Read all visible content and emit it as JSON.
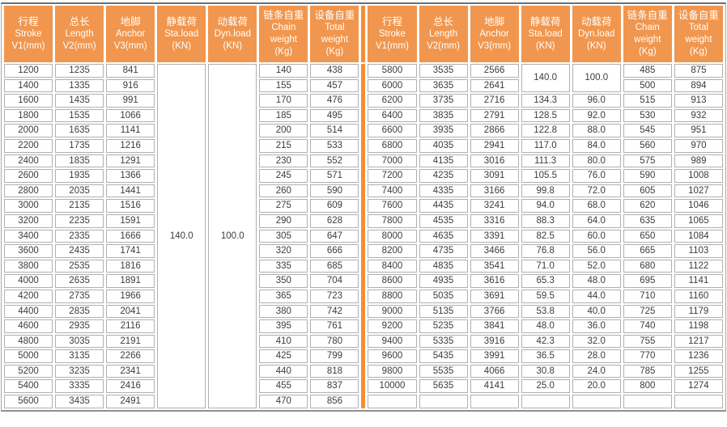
{
  "colors": {
    "header_bg": "#f0964e",
    "divider_bar": "#f18f38",
    "cell_border": "#b0b0b0",
    "data_text": "#3c3c3c",
    "header_text": "#ffffff"
  },
  "columns": [
    [
      "行程",
      "Stroke",
      "V1(mm)"
    ],
    [
      "总长",
      "Length",
      "V2(mm)"
    ],
    [
      "地脚",
      "Anchor",
      "V3(mm)"
    ],
    [
      "静载荷",
      "Sta.load",
      "(KN)"
    ],
    [
      "动载荷",
      "Dyn.load",
      "(KN)"
    ],
    [
      "链条自重",
      "Chain",
      "weight",
      "(Kg)"
    ],
    [
      "设备自重",
      "Total",
      "weight",
      "(Kg)"
    ]
  ],
  "tables": {
    "left": {
      "rows": [
        [
          "1200",
          "1235",
          "841",
          {
            "v": "140.0",
            "rs": 23
          },
          {
            "v": "100.0",
            "rs": 23
          },
          "140",
          "438"
        ],
        [
          "1400",
          "1335",
          "916",
          "155",
          "457"
        ],
        [
          "1600",
          "1435",
          "991",
          "170",
          "476"
        ],
        [
          "1800",
          "1535",
          "1066",
          "185",
          "495"
        ],
        [
          "2000",
          "1635",
          "1141",
          "200",
          "514"
        ],
        [
          "2200",
          "1735",
          "1216",
          "215",
          "533"
        ],
        [
          "2400",
          "1835",
          "1291",
          "230",
          "552"
        ],
        [
          "2600",
          "1935",
          "1366",
          "245",
          "571"
        ],
        [
          "2800",
          "2035",
          "1441",
          "260",
          "590"
        ],
        [
          "3000",
          "2135",
          "1516",
          "275",
          "609"
        ],
        [
          "3200",
          "2235",
          "1591",
          "290",
          "628"
        ],
        [
          "3400",
          "2335",
          "1666",
          "305",
          "647"
        ],
        [
          "3600",
          "2435",
          "1741",
          "320",
          "666"
        ],
        [
          "3800",
          "2535",
          "1816",
          "335",
          "685"
        ],
        [
          "4000",
          "2635",
          "1891",
          "350",
          "704"
        ],
        [
          "4200",
          "2735",
          "1966",
          "365",
          "723"
        ],
        [
          "4400",
          "2835",
          "2041",
          "380",
          "742"
        ],
        [
          "4600",
          "2935",
          "2116",
          "395",
          "761"
        ],
        [
          "4800",
          "3035",
          "2191",
          "410",
          "780"
        ],
        [
          "5000",
          "3135",
          "2266",
          "425",
          "799"
        ],
        [
          "5200",
          "3235",
          "2341",
          "440",
          "818"
        ],
        [
          "5400",
          "3335",
          "2416",
          "455",
          "837"
        ],
        [
          "5600",
          "3435",
          "2491",
          "470",
          "856"
        ]
      ]
    },
    "right": {
      "rows": [
        [
          "5800",
          "3535",
          "2566",
          {
            "v": "140.0",
            "rs": 2
          },
          {
            "v": "100.0",
            "rs": 2
          },
          "485",
          "875"
        ],
        [
          "6000",
          "3635",
          "2641",
          "500",
          "894"
        ],
        [
          "6200",
          "3735",
          "2716",
          "134.3",
          "96.0",
          "515",
          "913"
        ],
        [
          "6400",
          "3835",
          "2791",
          "128.5",
          "92.0",
          "530",
          "932"
        ],
        [
          "6600",
          "3935",
          "2866",
          "122.8",
          "88.0",
          "545",
          "951"
        ],
        [
          "6800",
          "4035",
          "2941",
          "117.0",
          "84.0",
          "560",
          "970"
        ],
        [
          "7000",
          "4135",
          "3016",
          "111.3",
          "80.0",
          "575",
          "989"
        ],
        [
          "7200",
          "4235",
          "3091",
          "105.5",
          "76.0",
          "590",
          "1008"
        ],
        [
          "7400",
          "4335",
          "3166",
          "99.8",
          "72.0",
          "605",
          "1027"
        ],
        [
          "7600",
          "4435",
          "3241",
          "94.0",
          "68.0",
          "620",
          "1046"
        ],
        [
          "7800",
          "4535",
          "3316",
          "88.3",
          "64.0",
          "635",
          "1065"
        ],
        [
          "8000",
          "4635",
          "3391",
          "82.5",
          "60.0",
          "650",
          "1084"
        ],
        [
          "8200",
          "4735",
          "3466",
          "76.8",
          "56.0",
          "665",
          "1103"
        ],
        [
          "8400",
          "4835",
          "3541",
          "71.0",
          "52.0",
          "680",
          "1122"
        ],
        [
          "8600",
          "4935",
          "3616",
          "65.3",
          "48.0",
          "695",
          "1141"
        ],
        [
          "8800",
          "5035",
          "3691",
          "59.5",
          "44.0",
          "710",
          "1160"
        ],
        [
          "9000",
          "5135",
          "3766",
          "53.8",
          "40.0",
          "725",
          "1179"
        ],
        [
          "9200",
          "5235",
          "3841",
          "48.0",
          "36.0",
          "740",
          "1198"
        ],
        [
          "9400",
          "5335",
          "3916",
          "42.3",
          "32.0",
          "755",
          "1217"
        ],
        [
          "9600",
          "5435",
          "3991",
          "36.5",
          "28.0",
          "770",
          "1236"
        ],
        [
          "9800",
          "5535",
          "4066",
          "30.8",
          "24.0",
          "785",
          "1255"
        ],
        [
          "10000",
          "5635",
          "4141",
          "25.0",
          "20.0",
          "800",
          "1274"
        ],
        [
          "",
          "",
          "",
          "",
          "",
          "",
          ""
        ]
      ]
    }
  }
}
